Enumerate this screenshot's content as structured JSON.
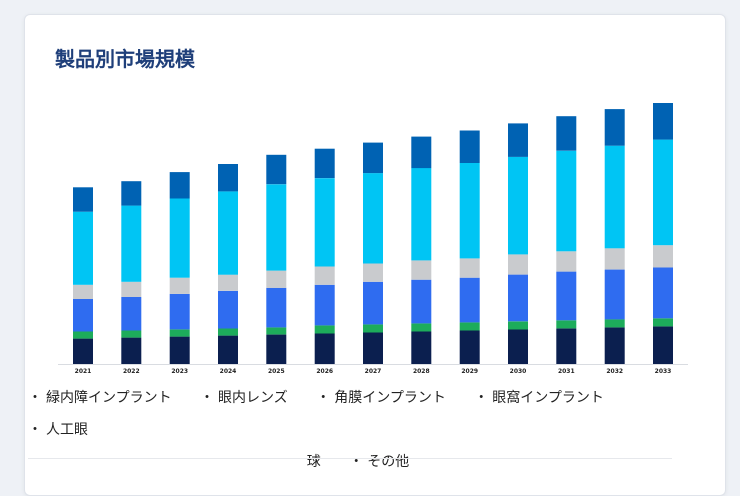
{
  "page": {
    "title": "製品別市場規模"
  },
  "colors": {
    "background": "#eef1f6",
    "card": "#ffffff",
    "title": "#1f3f7a"
  },
  "chart_data": {
    "type": "bar",
    "stacked": true,
    "title": "",
    "xlabel": "",
    "ylabel": "",
    "grid": false,
    "legend_placement": "bottom",
    "categories": [
      "2021",
      "2022",
      "2023",
      "2024",
      "2025",
      "2026",
      "2027",
      "2028",
      "2029",
      "2030",
      "2031",
      "2032",
      "2033"
    ],
    "ylim": [
      0,
      260
    ],
    "series": [
      {
        "name": "その他",
        "color": "#0b1f4f",
        "values": [
          25,
          26,
          27,
          28,
          29,
          30,
          31,
          32,
          33,
          34,
          35,
          36,
          37
        ]
      },
      {
        "name": "人工眼球",
        "color": "#1dac5b",
        "values": [
          7,
          7,
          7,
          7,
          7,
          8,
          8,
          8,
          8,
          8,
          8,
          8,
          8
        ]
      },
      {
        "name": "眼窩インプラント",
        "color": "#2f6cf0",
        "values": [
          32,
          33,
          35,
          37,
          39,
          40,
          42,
          43,
          44,
          46,
          48,
          49,
          50
        ]
      },
      {
        "name": "角膜インプラント",
        "color": "#c9cbce",
        "values": [
          14,
          15,
          16,
          16,
          17,
          18,
          18,
          19,
          19,
          20,
          20,
          21,
          22
        ]
      },
      {
        "name": "眼内レンズ",
        "color": "#00c5f4",
        "values": [
          72,
          75,
          78,
          82,
          85,
          87,
          89,
          91,
          94,
          96,
          99,
          101,
          104
        ]
      },
      {
        "name": "緑内障インプラント",
        "color": "#0062b3",
        "values": [
          24,
          24,
          26,
          27,
          29,
          29,
          30,
          31,
          32,
          33,
          34,
          36,
          36
        ]
      }
    ]
  },
  "legend": {
    "items": [
      "緑内障インプラント",
      "眼内レンズ",
      "角膜インプラント",
      "眼窩インプラント",
      "人工眼",
      "その他"
    ],
    "wrap_tail": "球",
    "bullet": "・"
  }
}
